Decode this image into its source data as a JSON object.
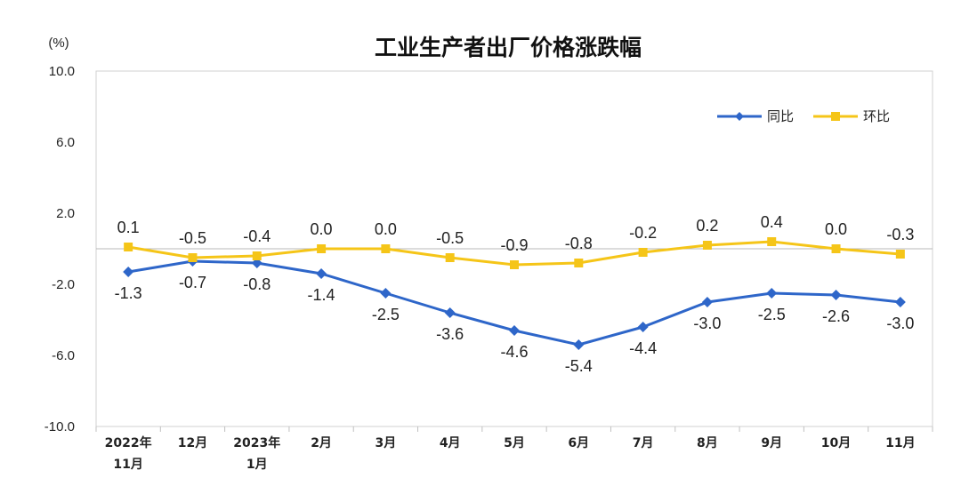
{
  "chart_data": {
    "type": "line",
    "title": "工业生产者出厂价格涨跌幅",
    "unit_label": "(%)",
    "ylim": [
      -10.0,
      10.0
    ],
    "yticks": [
      "10.0",
      "6.0",
      "2.0",
      "-2.0",
      "-6.0",
      "-10.0"
    ],
    "ytick_values": [
      10,
      6,
      2,
      -2,
      -6,
      -10
    ],
    "categories": [
      [
        "2022年",
        "11月"
      ],
      [
        "12月"
      ],
      [
        "2023年",
        "1月"
      ],
      [
        "2月"
      ],
      [
        "3月"
      ],
      [
        "4月"
      ],
      [
        "5月"
      ],
      [
        "6月"
      ],
      [
        "7月"
      ],
      [
        "8月"
      ],
      [
        "9月"
      ],
      [
        "10月"
      ],
      [
        "11月"
      ]
    ],
    "legend_position": "top-right",
    "series": [
      {
        "name": "同比",
        "color": "#2e66c9",
        "marker": "diamond",
        "values": [
          -1.3,
          -0.7,
          -0.8,
          -1.4,
          -2.5,
          -3.6,
          -4.6,
          -5.4,
          -4.4,
          -3.0,
          -2.5,
          -2.6,
          -3.0
        ],
        "labels": [
          "-1.3",
          "-0.7",
          "-0.8",
          "-1.4",
          "-2.5",
          "-3.6",
          "-4.6",
          "-5.4",
          "-4.4",
          "-3.0",
          "-2.5",
          "-2.6",
          "-3.0"
        ]
      },
      {
        "name": "环比",
        "color": "#f5c518",
        "marker": "square",
        "values": [
          0.1,
          -0.5,
          -0.4,
          0.0,
          0.0,
          -0.5,
          -0.9,
          -0.8,
          -0.2,
          0.2,
          0.4,
          0.0,
          -0.3
        ],
        "labels": [
          "0.1",
          "-0.5",
          "-0.4",
          "0.0",
          "0.0",
          "-0.5",
          "-0.9",
          "-0.8",
          "-0.2",
          "0.2",
          "0.4",
          "0.0",
          "-0.3"
        ]
      }
    ]
  }
}
